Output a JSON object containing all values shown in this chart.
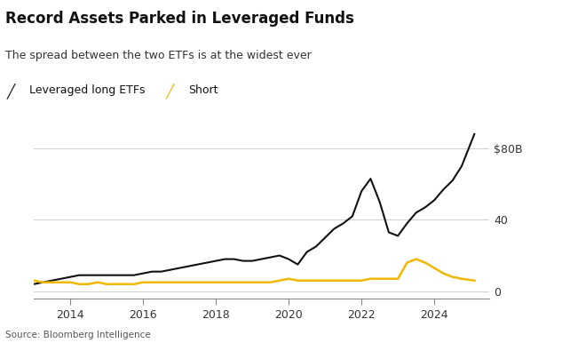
{
  "title": "Record Assets Parked in Leveraged Funds",
  "subtitle": "The spread between the two ETFs is at the widest ever",
  "legend": [
    "Leveraged long ETFs",
    "Short"
  ],
  "source": "Source: Bloomberg Intelligence",
  "yticks": [
    0,
    40,
    80
  ],
  "ytick_labels": [
    "0",
    "40",
    "$80B"
  ],
  "xlim": [
    2013.0,
    2025.5
  ],
  "ylim": [
    -4,
    92
  ],
  "background_color": "#ffffff",
  "long_color": "#111111",
  "short_color": "#f0b800",
  "long_x": [
    2013.0,
    2013.25,
    2013.5,
    2013.75,
    2014.0,
    2014.25,
    2014.5,
    2014.75,
    2015.0,
    2015.25,
    2015.5,
    2015.75,
    2016.0,
    2016.25,
    2016.5,
    2016.75,
    2017.0,
    2017.25,
    2017.5,
    2017.75,
    2018.0,
    2018.25,
    2018.5,
    2018.75,
    2019.0,
    2019.25,
    2019.5,
    2019.75,
    2020.0,
    2020.25,
    2020.5,
    2020.75,
    2021.0,
    2021.25,
    2021.5,
    2021.75,
    2022.0,
    2022.25,
    2022.5,
    2022.75,
    2023.0,
    2023.25,
    2023.5,
    2023.75,
    2024.0,
    2024.25,
    2024.5,
    2024.75,
    2025.1
  ],
  "long_y": [
    4,
    5,
    6,
    7,
    8,
    9,
    9,
    9,
    9,
    9,
    9,
    9,
    10,
    11,
    11,
    12,
    13,
    14,
    15,
    16,
    17,
    18,
    18,
    17,
    17,
    18,
    19,
    20,
    18,
    15,
    22,
    25,
    30,
    35,
    38,
    42,
    56,
    63,
    50,
    33,
    31,
    38,
    44,
    47,
    51,
    57,
    62,
    70,
    88
  ],
  "short_x": [
    2013.0,
    2013.25,
    2013.5,
    2013.75,
    2014.0,
    2014.25,
    2014.5,
    2014.75,
    2015.0,
    2015.25,
    2015.5,
    2015.75,
    2016.0,
    2016.25,
    2016.5,
    2016.75,
    2017.0,
    2017.25,
    2017.5,
    2017.75,
    2018.0,
    2018.25,
    2018.5,
    2018.75,
    2019.0,
    2019.25,
    2019.5,
    2019.75,
    2020.0,
    2020.25,
    2020.5,
    2020.75,
    2021.0,
    2021.25,
    2021.5,
    2021.75,
    2022.0,
    2022.25,
    2022.5,
    2022.75,
    2023.0,
    2023.25,
    2023.5,
    2023.75,
    2024.0,
    2024.25,
    2024.5,
    2024.75,
    2025.1
  ],
  "short_y": [
    6,
    5,
    5,
    5,
    5,
    4,
    4,
    5,
    4,
    4,
    4,
    4,
    5,
    5,
    5,
    5,
    5,
    5,
    5,
    5,
    5,
    5,
    5,
    5,
    5,
    5,
    5,
    6,
    7,
    6,
    6,
    6,
    6,
    6,
    6,
    6,
    6,
    7,
    7,
    7,
    7,
    16,
    18,
    16,
    13,
    10,
    8,
    7,
    6
  ],
  "xticks": [
    2014,
    2016,
    2018,
    2020,
    2022,
    2024
  ],
  "grid_color": "#d0d0d0"
}
